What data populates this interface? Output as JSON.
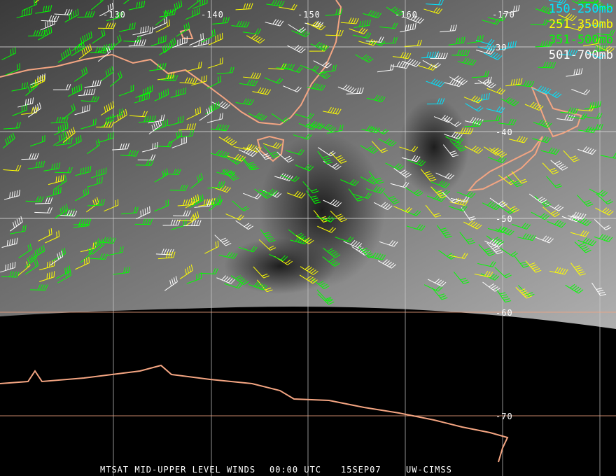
{
  "map": {
    "longitude_labels": [
      "-130",
      "-140",
      "-150",
      "-160",
      "-170"
    ],
    "latitude_labels": [
      "30",
      "-40",
      "-50",
      "-60",
      "-70"
    ],
    "colors": {
      "coastline": "#f4a582",
      "grid": "#f4a582",
      "grid_light": "#dddddd",
      "background_night": "#000000"
    }
  },
  "legend": [
    {
      "label": "150-250mb",
      "color": "#00e5ff"
    },
    {
      "label": "251-350mb",
      "color": "#ffff00"
    },
    {
      "label": "351-500mb",
      "color": "#00ff00"
    },
    {
      "label": "501-700mb",
      "color": "#ffffff"
    }
  ],
  "footer": {
    "title": "MTSAT MID-UPPER LEVEL WINDS",
    "time": "00:00 UTC",
    "date": "15SEP07",
    "source": "UW-CIMSS"
  }
}
